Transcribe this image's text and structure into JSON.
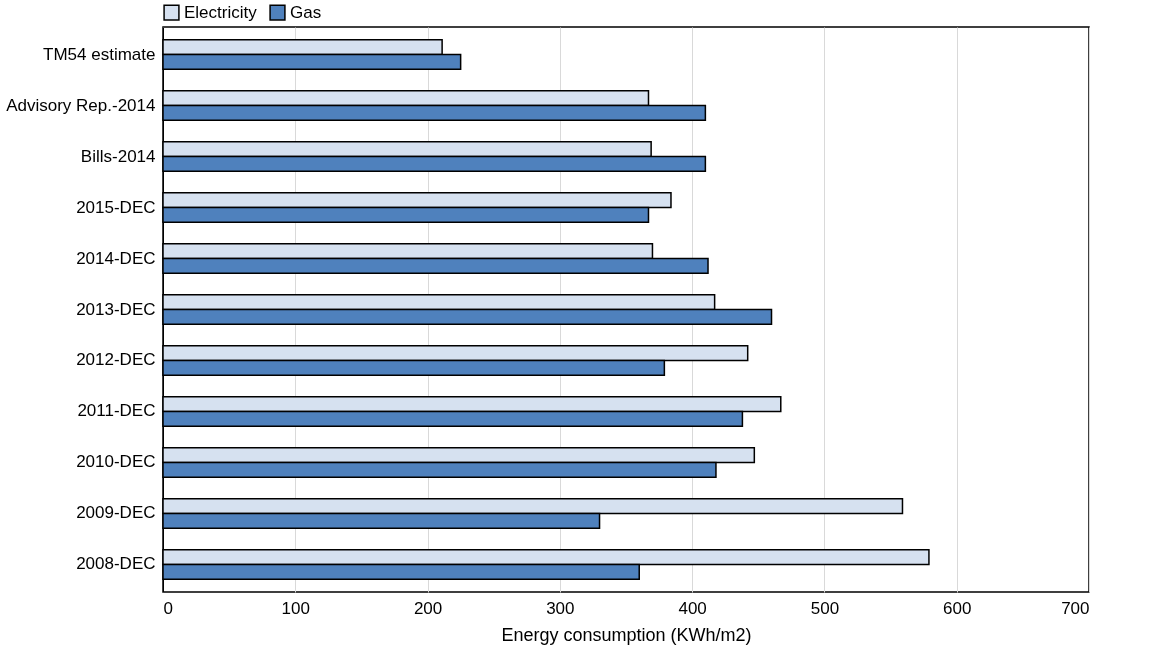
{
  "chart_data": {
    "type": "bar",
    "orientation": "horizontal",
    "xlabel": "Energy consumption (KWh/m2)",
    "categories": [
      "TM54 estimate",
      "Advisory Rep.-2014",
      "Bills-2014",
      "2015-DEC",
      "2014-DEC",
      "2013-DEC",
      "2012-DEC",
      "2011-DEC",
      "2010-DEC",
      "2009-DEC",
      "2008-DEC"
    ],
    "series": [
      {
        "name": "Electricity",
        "color": "#d6e1f0",
        "values": [
          211,
          367,
          369,
          384,
          370,
          417,
          442,
          467,
          447,
          559,
          579
        ]
      },
      {
        "name": "Gas",
        "color": "#4f81bd",
        "values": [
          225,
          410,
          410,
          367,
          412,
          460,
          379,
          438,
          418,
          330,
          360
        ]
      }
    ],
    "xlim": [
      0,
      700
    ],
    "xticks": [
      0,
      100,
      200,
      300,
      400,
      500,
      600,
      700
    ],
    "grid": "x",
    "legend": "top"
  }
}
